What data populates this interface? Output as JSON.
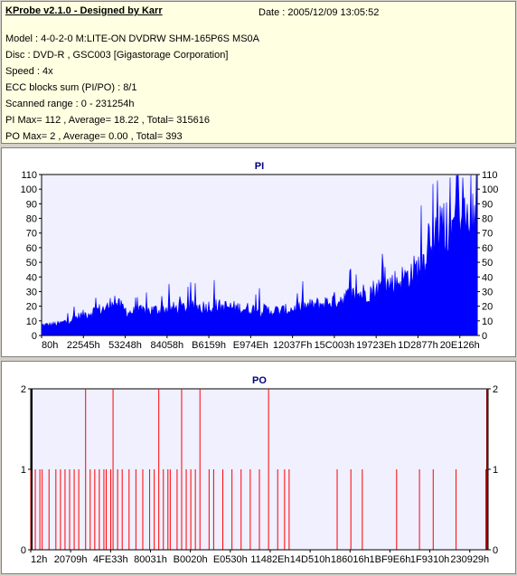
{
  "header": {
    "title": "KProbe v2.1.0 - Designed by Karr",
    "date": "Date : 2005/12/09 13:05:52",
    "lines": [
      "Model : 4-0-2-0 M:LITE-ON DVDRW SHM-165P6S MS0A",
      "Disc : DVD-R , GSC003 [Gigastorage Corporation]",
      "Speed : 4x",
      "ECC blocks sum (PI/PO) : 8/1",
      "Scanned range : 0 - 231254h",
      "PI Max= 112 , Average= 18.22 , Total= 315616",
      "PO Max= 2 , Average= 0.00 , Total= 393"
    ]
  },
  "colors": {
    "pi": "#0000ff",
    "po": "#ff0000",
    "plot_bg": "#f0f0ff",
    "grid": "#d0d0e0"
  },
  "chart_data": [
    {
      "type": "area",
      "title": "PI",
      "series": [
        {
          "name": "PI",
          "values": []
        }
      ],
      "ylim": [
        0,
        110
      ],
      "yticks": [
        0,
        10,
        20,
        30,
        40,
        50,
        60,
        70,
        80,
        90,
        100,
        110
      ],
      "xticks": [
        "80h",
        "22545h",
        "53248h",
        "84058h",
        "B6159h",
        "E974Eh",
        "12037Fh",
        "15C003h",
        "19723Eh",
        "1D2877h",
        "20E126h"
      ],
      "grid": false,
      "profile": [
        [
          0,
          8
        ],
        [
          0.04,
          9
        ],
        [
          0.08,
          14
        ],
        [
          0.12,
          19
        ],
        [
          0.155,
          22
        ],
        [
          0.165,
          30
        ],
        [
          0.175,
          24
        ],
        [
          0.2,
          18
        ],
        [
          0.3,
          21
        ],
        [
          0.4,
          23
        ],
        [
          0.5,
          20
        ],
        [
          0.55,
          19
        ],
        [
          0.6,
          22
        ],
        [
          0.65,
          25
        ],
        [
          0.7,
          30
        ],
        [
          0.75,
          34
        ],
        [
          0.8,
          40
        ],
        [
          0.84,
          46
        ],
        [
          0.87,
          54
        ],
        [
          0.88,
          60
        ],
        [
          0.89,
          78
        ],
        [
          0.92,
          83
        ],
        [
          0.95,
          85
        ],
        [
          0.98,
          88
        ],
        [
          1.0,
          100
        ]
      ]
    },
    {
      "type": "bar",
      "title": "PO",
      "series": [
        {
          "name": "PO",
          "values": []
        }
      ],
      "ylim": [
        0,
        2
      ],
      "yticks": [
        0,
        1,
        2
      ],
      "xticks": [
        "12h",
        "20709h",
        "4FE33h",
        "80031h",
        "B0020h",
        "E0530h",
        "11482Eh",
        "14D510h",
        "186016h",
        "1BF9E6h",
        "1F9310h",
        "230929h"
      ],
      "twos": [
        0.12,
        0.18,
        0.28,
        0.33,
        0.37,
        0.52
      ],
      "ones": [
        0.0,
        0.01,
        0.02,
        0.025,
        0.04,
        0.055,
        0.065,
        0.075,
        0.085,
        0.095,
        0.105,
        0.13,
        0.14,
        0.15,
        0.16,
        0.165,
        0.175,
        0.19,
        0.2,
        0.215,
        0.23,
        0.245,
        0.26,
        0.27,
        0.29,
        0.3,
        0.305,
        0.32,
        0.34,
        0.35,
        0.36,
        0.39,
        0.4,
        0.42,
        0.44,
        0.46,
        0.48,
        0.5,
        0.54,
        0.555,
        0.565,
        0.67,
        0.7,
        0.725,
        0.8,
        0.85,
        0.88,
        0.93,
        0.995
      ]
    }
  ]
}
